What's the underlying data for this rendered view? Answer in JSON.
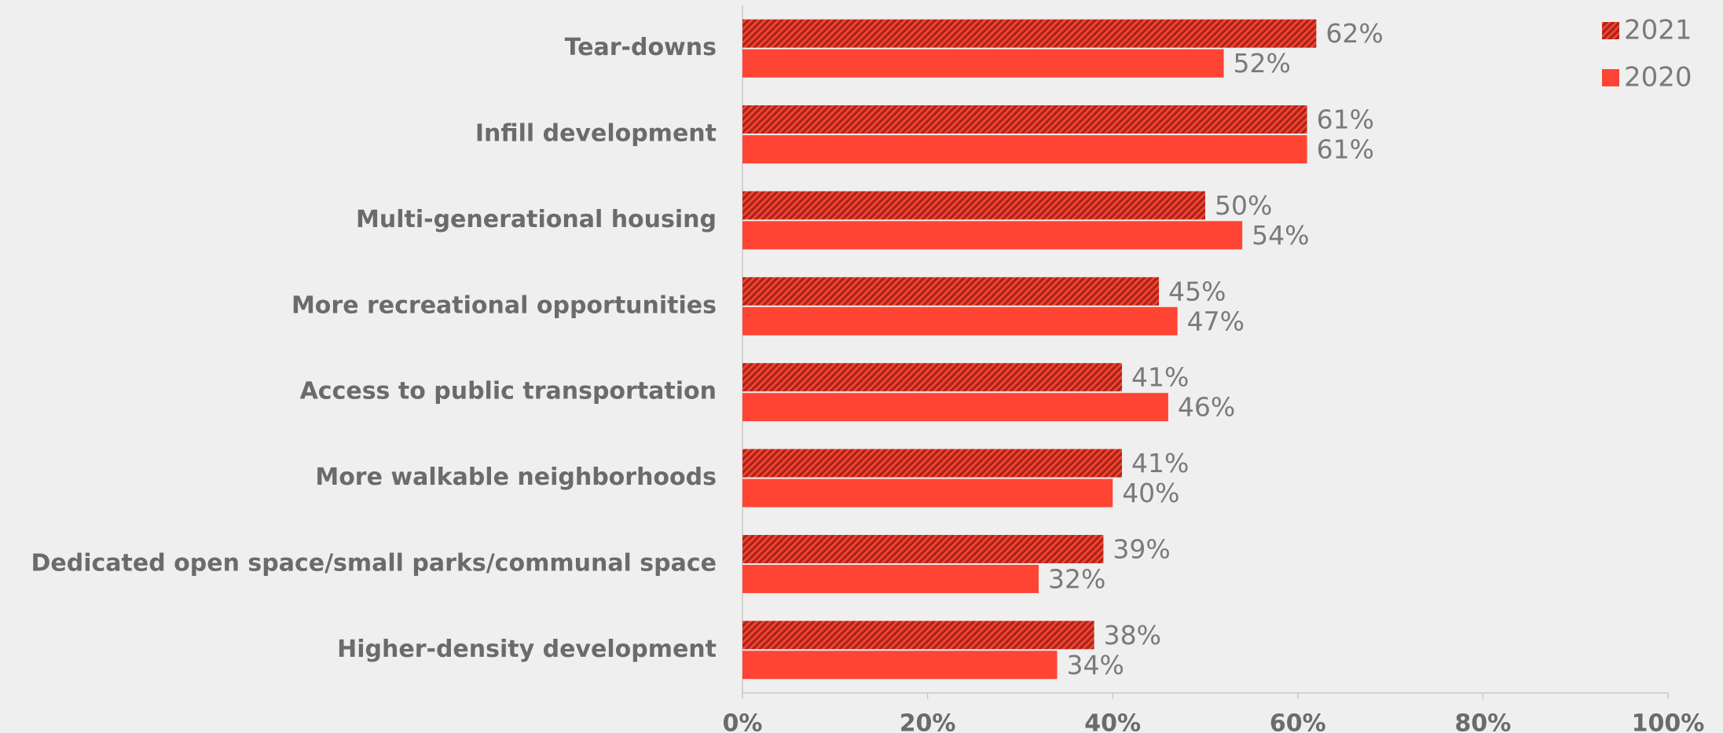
{
  "chart_data": {
    "type": "barh",
    "categories": [
      "Tear-downs",
      "Infill development",
      "Multi-generational housing",
      "More recreational opportunities",
      "Access to public transportation",
      "More walkable neighborhoods",
      "Dedicated open space/small parks/communal space",
      "Higher-density development"
    ],
    "series": [
      {
        "name": "2021",
        "color": "#a8261b",
        "hatch": true,
        "values": [
          62,
          61,
          50,
          45,
          41,
          41,
          39,
          38
        ],
        "value_labels": [
          "62%",
          "61%",
          "50%",
          "45%",
          "41%",
          "41%",
          "39%",
          "38%"
        ]
      },
      {
        "name": "2020",
        "color": "#ff4433",
        "hatch": false,
        "values": [
          52,
          61,
          54,
          47,
          46,
          40,
          32,
          34
        ],
        "value_labels": [
          "52%",
          "61%",
          "54%",
          "47%",
          "46%",
          "40%",
          "32%",
          "34%"
        ]
      }
    ],
    "xlim": [
      0,
      100
    ],
    "xticks": [
      {
        "value": 0,
        "label": "0%"
      },
      {
        "value": 20,
        "label": "20%"
      },
      {
        "value": 40,
        "label": "40%"
      },
      {
        "value": 60,
        "label": "60%"
      },
      {
        "value": 80,
        "label": "80%"
      },
      {
        "value": 100,
        "label": "100%"
      }
    ],
    "grid": false,
    "legend": "top-right"
  }
}
